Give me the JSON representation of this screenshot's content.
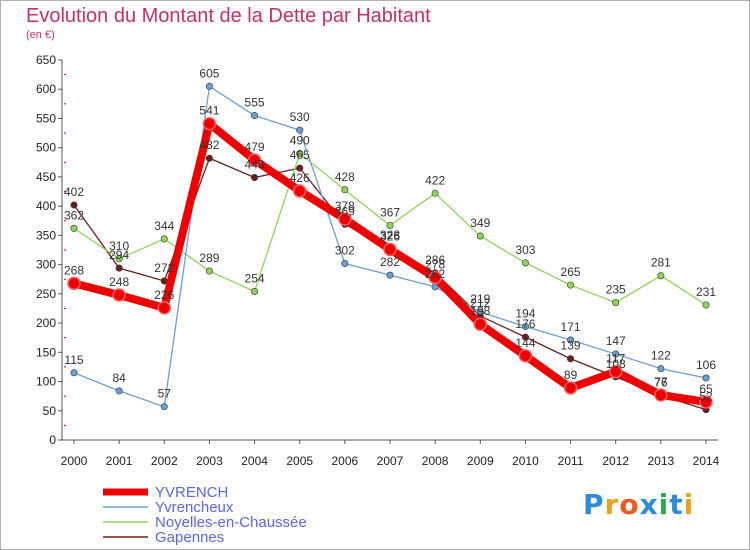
{
  "title": "Evolution du Montant de la Dette par Habitant",
  "subtitle": "(en €)",
  "logo": {
    "text": "Proxiti",
    "colors": [
      "#2e8bd9",
      "#e8a020",
      "#e85a20",
      "#2e8bd9",
      "#2ea84a",
      "#2e8bd9",
      "#e8a020"
    ]
  },
  "chart_data": {
    "type": "line",
    "x": [
      2000,
      2001,
      2002,
      2003,
      2004,
      2005,
      2006,
      2007,
      2008,
      2009,
      2010,
      2011,
      2012,
      2013,
      2014
    ],
    "ylim": [
      0,
      650
    ],
    "yticks": [
      0,
      50,
      100,
      150,
      200,
      250,
      300,
      350,
      400,
      450,
      500,
      550,
      600,
      650
    ],
    "grid": false,
    "legend_position": "bottom-left",
    "series": [
      {
        "name": "Gapennes",
        "color": "#6b1f1f",
        "values": [
          402,
          294,
          272,
          482,
          449,
          465,
          369,
          328,
          286,
          212,
          176,
          139,
          108,
          76,
          52
        ]
      },
      {
        "name": "Noyelles-en-Chaussée",
        "color": "#8fd45a",
        "values": [
          362,
          310,
          344,
          289,
          254,
          490,
          428,
          367,
          422,
          349,
          303,
          265,
          235,
          281,
          231
        ]
      },
      {
        "name": "Yvrencheux",
        "color": "#6a9fd4",
        "values": [
          115,
          84,
          57,
          605,
          555,
          530,
          302,
          282,
          262,
          219,
          194,
          171,
          147,
          122,
          106
        ]
      },
      {
        "name": "YVRENCH",
        "color": "#ee0000",
        "values": [
          268,
          248,
          226,
          541,
          479,
          426,
          378,
          326,
          278,
          198,
          144,
          89,
          117,
          77,
          65
        ]
      }
    ],
    "data_labels": [
      {
        "text": "402",
        "x": 2000,
        "y": 402
      },
      {
        "text": "294",
        "x": 2001,
        "y": 294
      },
      {
        "text": "272",
        "x": 2002,
        "y": 272
      },
      {
        "text": "482",
        "x": 2003,
        "y": 482
      },
      {
        "text": "449",
        "x": 2004,
        "y": 449
      },
      {
        "text": "465",
        "x": 2005,
        "y": 465
      },
      {
        "text": "369",
        "x": 2006,
        "y": 369
      },
      {
        "text": "328",
        "x": 2007,
        "y": 328
      },
      {
        "text": "286",
        "x": 2008,
        "y": 286
      },
      {
        "text": "212",
        "x": 2009,
        "y": 212
      },
      {
        "text": "176",
        "x": 2010,
        "y": 176
      },
      {
        "text": "139",
        "x": 2011,
        "y": 139
      },
      {
        "text": "108",
        "x": 2012,
        "y": 108
      },
      {
        "text": "76",
        "x": 2013,
        "y": 76
      },
      {
        "text": "52",
        "x": 2014,
        "y": 52
      },
      {
        "text": "362",
        "x": 2000,
        "y": 362
      },
      {
        "text": "310",
        "x": 2001,
        "y": 310
      },
      {
        "text": "344",
        "x": 2002,
        "y": 344
      },
      {
        "text": "289",
        "x": 2003,
        "y": 289
      },
      {
        "text": "254",
        "x": 2004,
        "y": 254
      },
      {
        "text": "490",
        "x": 2005,
        "y": 490
      },
      {
        "text": "428",
        "x": 2006,
        "y": 428
      },
      {
        "text": "367",
        "x": 2007,
        "y": 367
      },
      {
        "text": "422",
        "x": 2008,
        "y": 422
      },
      {
        "text": "349",
        "x": 2009,
        "y": 349
      },
      {
        "text": "303",
        "x": 2010,
        "y": 303
      },
      {
        "text": "265",
        "x": 2011,
        "y": 265
      },
      {
        "text": "235",
        "x": 2012,
        "y": 235
      },
      {
        "text": "281",
        "x": 2013,
        "y": 281
      },
      {
        "text": "231",
        "x": 2014,
        "y": 231
      },
      {
        "text": "115",
        "x": 2000,
        "y": 115
      },
      {
        "text": "84",
        "x": 2001,
        "y": 84
      },
      {
        "text": "57",
        "x": 2002,
        "y": 57
      },
      {
        "text": "605",
        "x": 2003,
        "y": 605
      },
      {
        "text": "555",
        "x": 2004,
        "y": 555
      },
      {
        "text": "530",
        "x": 2005,
        "y": 530
      },
      {
        "text": "302",
        "x": 2006,
        "y": 302
      },
      {
        "text": "282",
        "x": 2007,
        "y": 282
      },
      {
        "text": "262",
        "x": 2008,
        "y": 262
      },
      {
        "text": "219",
        "x": 2009,
        "y": 219
      },
      {
        "text": "194",
        "x": 2010,
        "y": 194
      },
      {
        "text": "171",
        "x": 2011,
        "y": 171
      },
      {
        "text": "147",
        "x": 2012,
        "y": 147
      },
      {
        "text": "122",
        "x": 2013,
        "y": 122
      },
      {
        "text": "106",
        "x": 2014,
        "y": 106
      },
      {
        "text": "268",
        "x": 2000,
        "y": 268
      },
      {
        "text": "248",
        "x": 2001,
        "y": 248
      },
      {
        "text": "226",
        "x": 2002,
        "y": 226
      },
      {
        "text": "541",
        "x": 2003,
        "y": 541
      },
      {
        "text": "479",
        "x": 2004,
        "y": 479
      },
      {
        "text": "426",
        "x": 2005,
        "y": 426
      },
      {
        "text": "378",
        "x": 2006,
        "y": 378
      },
      {
        "text": "326",
        "x": 2007,
        "y": 326
      },
      {
        "text": "278",
        "x": 2008,
        "y": 278
      },
      {
        "text": "198",
        "x": 2009,
        "y": 198
      },
      {
        "text": "144",
        "x": 2010,
        "y": 144
      },
      {
        "text": "89",
        "x": 2011,
        "y": 89
      },
      {
        "text": "117",
        "x": 2012,
        "y": 117
      },
      {
        "text": "77",
        "x": 2013,
        "y": 77
      },
      {
        "text": "65",
        "x": 2014,
        "y": 65
      }
    ]
  }
}
